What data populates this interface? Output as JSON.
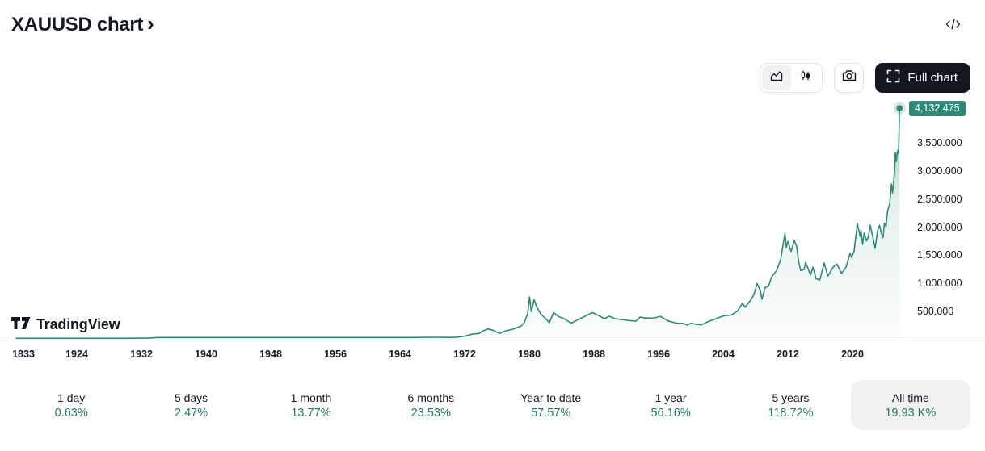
{
  "header": {
    "title": "XAUUSD chart",
    "chevron": "›"
  },
  "toolbar": {
    "full_chart_label": "Full chart"
  },
  "watermark": {
    "brand": "TradingView"
  },
  "colors": {
    "accent": "#2d8a76",
    "positive": "#217a67",
    "text": "#131722",
    "border": "#e0e3eb",
    "pill_bg": "#f1f1f1",
    "button_bg": "#131722",
    "segment_selected_bg": "#f0f1f2",
    "fill_top": "rgba(45,138,118,0.5)",
    "fill_mid": "rgba(45,138,118,0.12)",
    "fill_bottom": "rgba(45,138,118,0.02)"
  },
  "chart_data": {
    "type": "area",
    "title": "XAUUSD all-time price chart",
    "last_price": 4132.475,
    "last_price_label": "4,132.475",
    "y_axis": {
      "side": "right",
      "ticks": [
        {
          "value": 3500,
          "label": "3,500.000"
        },
        {
          "value": 3000,
          "label": "3,000.000"
        },
        {
          "value": 2500,
          "label": "2,500.000"
        },
        {
          "value": 2000,
          "label": "2,000.000"
        },
        {
          "value": 1500,
          "label": "1,500.000"
        },
        {
          "value": 1000,
          "label": "1,000.000"
        },
        {
          "value": 500,
          "label": "500.000"
        }
      ],
      "implied_range": [
        0,
        4300
      ]
    },
    "x_axis": {
      "ticks": [
        {
          "year": 1833,
          "label": "1833"
        },
        {
          "year": 1924,
          "label": "1924"
        },
        {
          "year": 1932,
          "label": "1932"
        },
        {
          "year": 1940,
          "label": "1940"
        },
        {
          "year": 1948,
          "label": "1948"
        },
        {
          "year": 1956,
          "label": "1956"
        },
        {
          "year": 1964,
          "label": "1964"
        },
        {
          "year": 1972,
          "label": "1972"
        },
        {
          "year": 1980,
          "label": "1980"
        },
        {
          "year": 1988,
          "label": "1988"
        },
        {
          "year": 1996,
          "label": "1996"
        },
        {
          "year": 2004,
          "label": "2004"
        },
        {
          "year": 2012,
          "label": "2012"
        },
        {
          "year": 2020,
          "label": "2020"
        }
      ]
    },
    "series": [
      {
        "name": "XAUUSD",
        "points": [
          [
            1833,
            20.6
          ],
          [
            1850,
            20.6
          ],
          [
            1870,
            20.6
          ],
          [
            1890,
            20.6
          ],
          [
            1910,
            20.6
          ],
          [
            1920,
            20.6
          ],
          [
            1930,
            20.6
          ],
          [
            1933,
            26
          ],
          [
            1934,
            35
          ],
          [
            1945,
            34.7
          ],
          [
            1955,
            35
          ],
          [
            1965,
            35.2
          ],
          [
            1968,
            38.7
          ],
          [
            1970,
            36
          ],
          [
            1971,
            41
          ],
          [
            1972,
            58
          ],
          [
            1973,
            97
          ],
          [
            1973.8,
            106
          ],
          [
            1974.3,
            154
          ],
          [
            1974.9,
            187
          ],
          [
            1975.5,
            165
          ],
          [
            1976.3,
            110
          ],
          [
            1977,
            148
          ],
          [
            1978,
            185
          ],
          [
            1978.5,
            212
          ],
          [
            1979,
            240
          ],
          [
            1979.4,
            307
          ],
          [
            1979.8,
            460
          ],
          [
            1980.04,
            760
          ],
          [
            1980.25,
            495
          ],
          [
            1980.6,
            710
          ],
          [
            1980.9,
            590
          ],
          [
            1981.4,
            460
          ],
          [
            1982,
            375
          ],
          [
            1982.5,
            300
          ],
          [
            1983,
            480
          ],
          [
            1983.6,
            410
          ],
          [
            1984.3,
            370
          ],
          [
            1985.2,
            290
          ],
          [
            1986,
            350
          ],
          [
            1986.7,
            400
          ],
          [
            1987.8,
            480
          ],
          [
            1988.6,
            425
          ],
          [
            1989.3,
            370
          ],
          [
            1989.9,
            415
          ],
          [
            1990.6,
            370
          ],
          [
            1991.5,
            355
          ],
          [
            1992.5,
            335
          ],
          [
            1993.2,
            328
          ],
          [
            1993.7,
            400
          ],
          [
            1994.5,
            380
          ],
          [
            1995.5,
            385
          ],
          [
            1996.2,
            412
          ],
          [
            1997.2,
            330
          ],
          [
            1998.2,
            290
          ],
          [
            1999,
            285
          ],
          [
            1999.6,
            255
          ],
          [
            2000,
            290
          ],
          [
            2000.7,
            270
          ],
          [
            2001.3,
            260
          ],
          [
            2002,
            310
          ],
          [
            2003,
            365
          ],
          [
            2004,
            420
          ],
          [
            2005,
            435
          ],
          [
            2005.8,
            510
          ],
          [
            2006.4,
            650
          ],
          [
            2006.7,
            575
          ],
          [
            2007.2,
            660
          ],
          [
            2007.8,
            800
          ],
          [
            2008.2,
            1000
          ],
          [
            2008.6,
            870
          ],
          [
            2008.8,
            720
          ],
          [
            2009.2,
            930
          ],
          [
            2009.6,
            950
          ],
          [
            2010,
            1120
          ],
          [
            2010.6,
            1230
          ],
          [
            2011.1,
            1420
          ],
          [
            2011.65,
            1900
          ],
          [
            2011.8,
            1640
          ],
          [
            2012,
            1750
          ],
          [
            2012.4,
            1570
          ],
          [
            2012.8,
            1770
          ],
          [
            2013.1,
            1660
          ],
          [
            2013.35,
            1380
          ],
          [
            2013.6,
            1230
          ],
          [
            2014,
            1250
          ],
          [
            2014.2,
            1380
          ],
          [
            2014.8,
            1150
          ],
          [
            2015.1,
            1290
          ],
          [
            2015.5,
            1090
          ],
          [
            2015.95,
            1060
          ],
          [
            2016.5,
            1365
          ],
          [
            2016.95,
            1130
          ],
          [
            2017.6,
            1290
          ],
          [
            2018.05,
            1350
          ],
          [
            2018.65,
            1180
          ],
          [
            2019.2,
            1290
          ],
          [
            2019.7,
            1540
          ],
          [
            2019.9,
            1470
          ],
          [
            2020.2,
            1580
          ],
          [
            2020.6,
            2070
          ],
          [
            2020.95,
            1840
          ],
          [
            2021.05,
            1950
          ],
          [
            2021.25,
            1700
          ],
          [
            2021.45,
            1900
          ],
          [
            2021.75,
            1760
          ],
          [
            2021.95,
            1830
          ],
          [
            2022.2,
            2040
          ],
          [
            2022.55,
            1810
          ],
          [
            2022.8,
            1630
          ],
          [
            2023.1,
            1940
          ],
          [
            2023.35,
            2040
          ],
          [
            2023.55,
            1910
          ],
          [
            2023.78,
            1820
          ],
          [
            2023.95,
            2080
          ],
          [
            2024.15,
            2020
          ],
          [
            2024.35,
            2300
          ],
          [
            2024.6,
            2420
          ],
          [
            2024.82,
            2780
          ],
          [
            2024.95,
            2620
          ],
          [
            2025.05,
            2750
          ],
          [
            2025.2,
            2980
          ],
          [
            2025.3,
            3340
          ],
          [
            2025.42,
            3180
          ],
          [
            2025.52,
            3330
          ],
          [
            2025.62,
            3380
          ],
          [
            2025.7,
            3320
          ],
          [
            2025.76,
            3680
          ],
          [
            2025.82,
            4132.475
          ]
        ]
      }
    ]
  },
  "stats": [
    {
      "label": "1 day",
      "value": "0.63%",
      "selected": false
    },
    {
      "label": "5 days",
      "value": "2.47%",
      "selected": false
    },
    {
      "label": "1 month",
      "value": "13.77%",
      "selected": false
    },
    {
      "label": "6 months",
      "value": "23.53%",
      "selected": false
    },
    {
      "label": "Year to date",
      "value": "57.57%",
      "selected": false
    },
    {
      "label": "1 year",
      "value": "56.16%",
      "selected": false
    },
    {
      "label": "5 years",
      "value": "118.72%",
      "selected": false
    },
    {
      "label": "All time",
      "value": "19.93 K%",
      "selected": true
    }
  ]
}
